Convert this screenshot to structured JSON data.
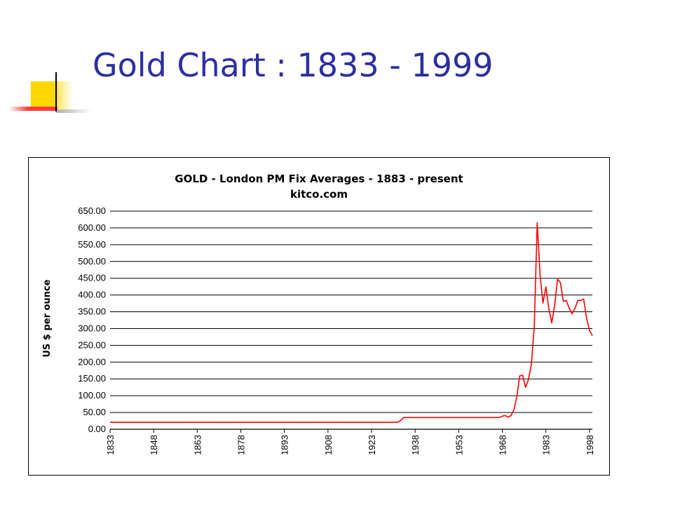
{
  "slide": {
    "title": "Gold Chart : 1833 - 1999"
  },
  "colors": {
    "title_text": "#2b2fa0",
    "accent_yellow": "#ffd700",
    "accent_red": "#ff3b3b",
    "series_line": "#ff0000",
    "gridline": "#000000"
  },
  "chart_data": {
    "type": "line",
    "title": "GOLD  -  London PM Fix Averages  -  1883 - present",
    "subtitle": "kitco.com",
    "ylabel": "US $ per ounce",
    "xlabel": "",
    "xlim": [
      1833,
      1999
    ],
    "ylim": [
      0,
      650
    ],
    "grid": "horizontal",
    "legend": "none",
    "y_ticks": [
      "0.00",
      "50.00",
      "100.00",
      "150.00",
      "200.00",
      "250.00",
      "300.00",
      "350.00",
      "400.00",
      "450.00",
      "500.00",
      "550.00",
      "600.00",
      "650.00"
    ],
    "x_ticks": [
      "1833",
      "1848",
      "1863",
      "1878",
      "1893",
      "1908",
      "1923",
      "1938",
      "1953",
      "1968",
      "1983",
      "1998"
    ],
    "series": [
      {
        "x": [
          1833,
          1900,
          1932,
          1933,
          1934,
          1935,
          1940,
          1945,
          1950,
          1960,
          1967,
          1968,
          1969,
          1970,
          1971,
          1972,
          1973,
          1974,
          1975,
          1976,
          1977,
          1978,
          1979,
          1980,
          1981,
          1982,
          1983,
          1984,
          1985,
          1986,
          1987,
          1988,
          1989,
          1990,
          1991,
          1992,
          1993,
          1994,
          1995,
          1996,
          1997,
          1998,
          1999
        ],
        "y": [
          20.67,
          20.67,
          20.67,
          26,
          35,
          35,
          35,
          35,
          35,
          35,
          35,
          39,
          41,
          36,
          41,
          58,
          97,
          159,
          161,
          125,
          148,
          193,
          306,
          615,
          460,
          376,
          424,
          361,
          317,
          368,
          447,
          437,
          381,
          384,
          362,
          344,
          360,
          384,
          384,
          388,
          331,
          294,
          279
        ]
      }
    ]
  }
}
